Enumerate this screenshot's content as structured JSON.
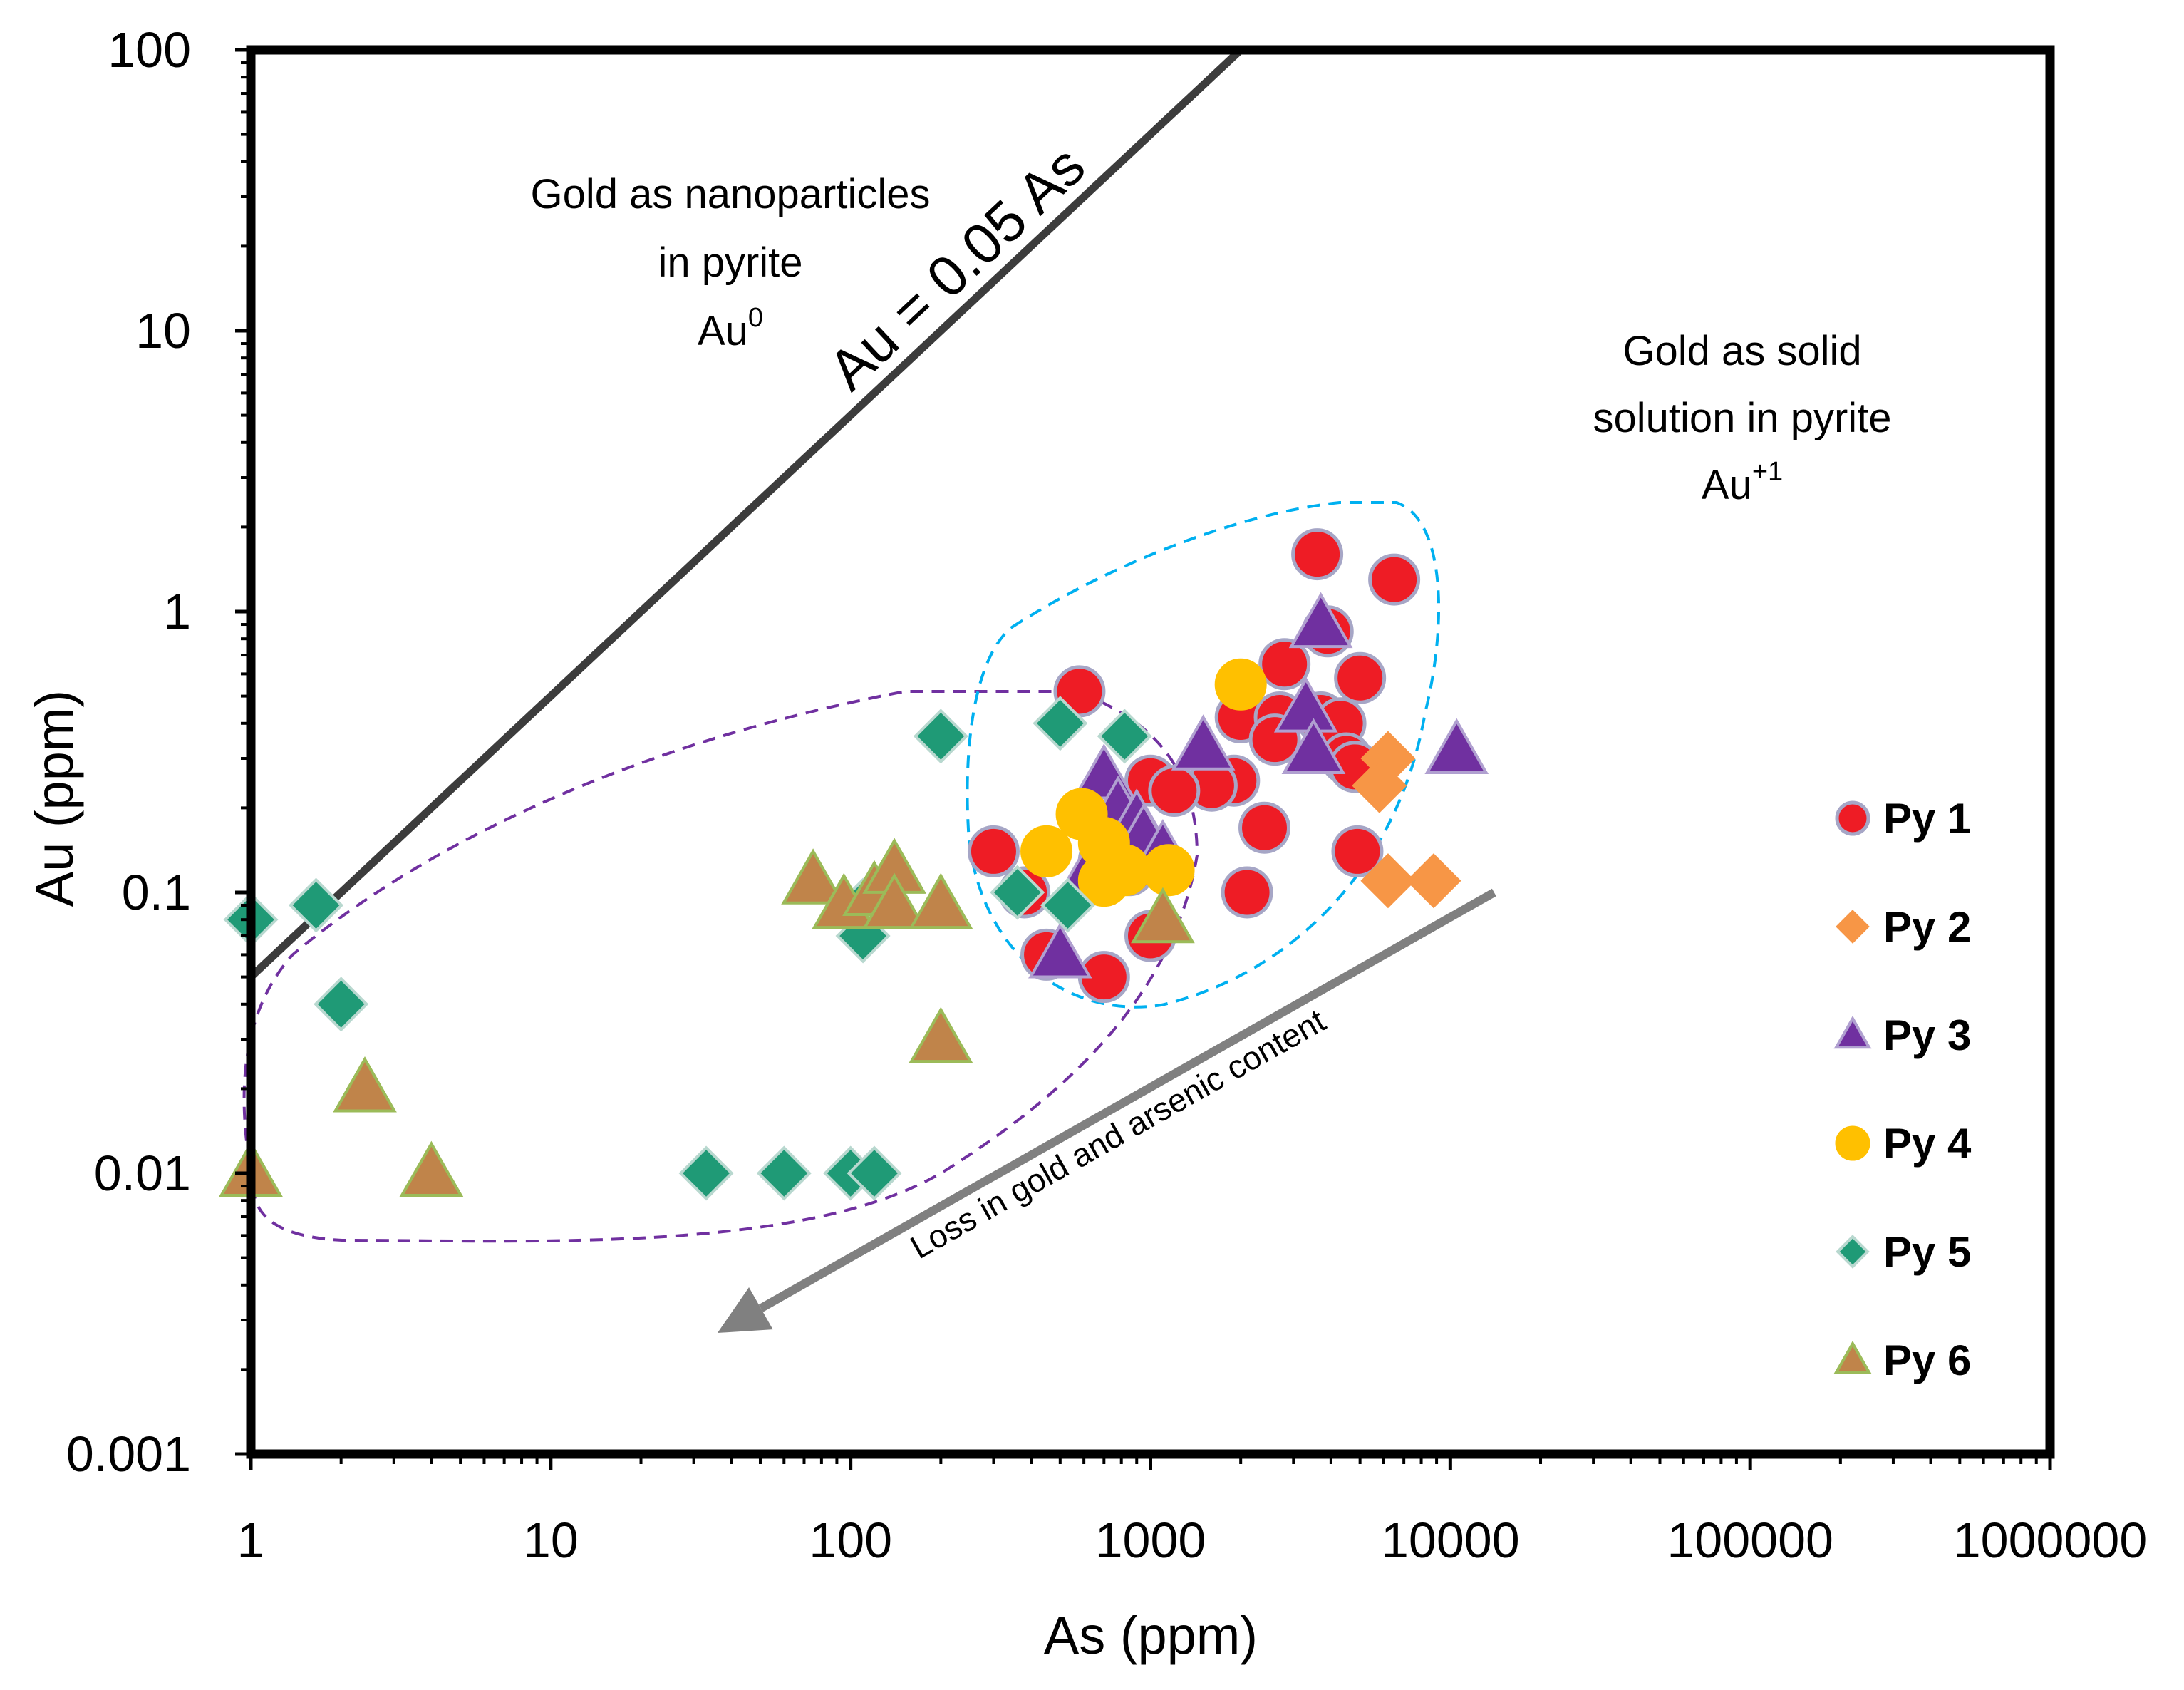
{
  "chart_data": {
    "type": "scatter",
    "xscale": "log",
    "yscale": "log",
    "xlabel": "As (ppm)",
    "ylabel": "Au (ppm)",
    "xlim": [
      1,
      1000000
    ],
    "ylim": [
      0.001,
      100
    ],
    "xticks": [
      "1",
      "10",
      "100",
      "1000",
      "10000",
      "100000",
      "1000000"
    ],
    "xtick_values": [
      1,
      10,
      100,
      1000,
      10000,
      100000,
      1000000
    ],
    "yticks": [
      "0.001",
      "0.01",
      "0.1",
      "1",
      "10",
      "100"
    ],
    "ytick_values": [
      0.001,
      0.01,
      0.1,
      1,
      10,
      100
    ],
    "legend_position": "right",
    "reference_line": {
      "label": "Au = 0.05 As",
      "slope_factor": 0.05,
      "color": "#3c3c3c"
    },
    "annotations": {
      "nano": {
        "line1": "Gold as nanoparticles",
        "line2": "in pyrite",
        "line3": "Au",
        "sup": "0"
      },
      "solid": {
        "line1": "Gold as solid",
        "line2": "solution in pyrite",
        "line3": "Au",
        "sup": "+1"
      },
      "arrow": {
        "label": "Loss in gold and arsenic content",
        "from": [
          14000,
          0.1
        ],
        "to": [
          36,
          0.0027
        ],
        "color": "#808080"
      }
    },
    "envelopes": [
      {
        "name": "purple-envelope",
        "color": "#7030a0"
      },
      {
        "name": "blue-envelope",
        "color": "#00b0f0"
      }
    ],
    "series": [
      {
        "name": "Py 1",
        "marker": "circle",
        "color": "#ee1c25",
        "stroke": "#a6a6c6",
        "points": [
          [
            3600,
            1.6
          ],
          [
            6500,
            1.3
          ],
          [
            3900,
            0.85
          ],
          [
            2800,
            0.65
          ],
          [
            5000,
            0.58
          ],
          [
            580,
            0.52
          ],
          [
            2000,
            0.42
          ],
          [
            2700,
            0.42
          ],
          [
            3700,
            0.42
          ],
          [
            4300,
            0.4
          ],
          [
            2600,
            0.35
          ],
          [
            4500,
            0.3
          ],
          [
            4800,
            0.28
          ],
          [
            1000,
            0.25
          ],
          [
            1900,
            0.25
          ],
          [
            1600,
            0.24
          ],
          [
            1200,
            0.23
          ],
          [
            2400,
            0.17
          ],
          [
            300,
            0.14
          ],
          [
            700,
            0.13
          ],
          [
            850,
            0.12
          ],
          [
            4900,
            0.14
          ],
          [
            2100,
            0.1
          ],
          [
            380,
            0.1
          ],
          [
            1000,
            0.07
          ],
          [
            450,
            0.06
          ],
          [
            700,
            0.05
          ]
        ]
      },
      {
        "name": "Py 2",
        "marker": "diamond",
        "color": "#f79646",
        "stroke": "#f79646",
        "points": [
          [
            6200,
            0.3
          ],
          [
            5800,
            0.24
          ],
          [
            6200,
            0.11
          ],
          [
            8800,
            0.11
          ]
        ]
      },
      {
        "name": "Py 3",
        "marker": "triangle",
        "color": "#7030a0",
        "stroke": "#b0a0d0",
        "points": [
          [
            3700,
            0.9
          ],
          [
            3300,
            0.45
          ],
          [
            3500,
            0.32
          ],
          [
            1500,
            0.33
          ],
          [
            10500,
            0.32
          ],
          [
            700,
            0.26
          ],
          [
            780,
            0.2
          ],
          [
            900,
            0.18
          ],
          [
            950,
            0.16
          ],
          [
            1100,
            0.14
          ],
          [
            600,
            0.11
          ],
          [
            500,
            0.06
          ]
        ]
      },
      {
        "name": "Py 4",
        "marker": "circle",
        "color": "#ffc000",
        "stroke": "#ffc000",
        "points": [
          [
            2000,
            0.55
          ],
          [
            590,
            0.19
          ],
          [
            700,
            0.15
          ],
          [
            450,
            0.14
          ],
          [
            1150,
            0.12
          ],
          [
            820,
            0.12
          ],
          [
            700,
            0.11
          ]
        ]
      },
      {
        "name": "Py 5",
        "marker": "diamond",
        "color": "#1f9a76",
        "stroke": "#b8d8cf",
        "points": [
          [
            1,
            0.08
          ],
          [
            1.65,
            0.09
          ],
          [
            2,
            0.04
          ],
          [
            200,
            0.36
          ],
          [
            500,
            0.4
          ],
          [
            820,
            0.36
          ],
          [
            110,
            0.09
          ],
          [
            110,
            0.07
          ],
          [
            360,
            0.1
          ],
          [
            530,
            0.09
          ],
          [
            33,
            0.01
          ],
          [
            60,
            0.01
          ],
          [
            100,
            0.01
          ],
          [
            120,
            0.01
          ]
        ]
      },
      {
        "name": "Py 6",
        "marker": "triangle",
        "color": "#c0844a",
        "stroke": "#9bbb59",
        "points": [
          [
            1,
            0.01
          ],
          [
            2.4,
            0.02
          ],
          [
            4,
            0.01
          ],
          [
            75,
            0.11
          ],
          [
            95,
            0.09
          ],
          [
            120,
            0.1
          ],
          [
            140,
            0.12
          ],
          [
            140,
            0.09
          ],
          [
            200,
            0.09
          ],
          [
            200,
            0.03
          ],
          [
            1100,
            0.08
          ]
        ]
      }
    ]
  }
}
